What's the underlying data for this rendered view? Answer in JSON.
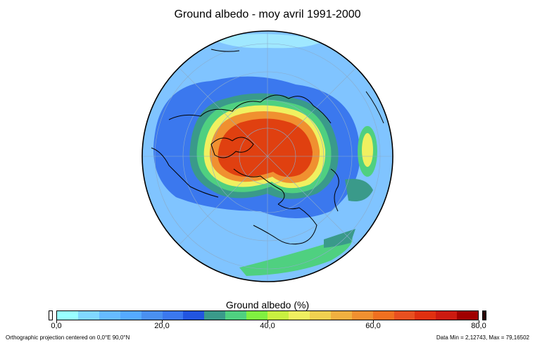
{
  "title": "Ground albedo - moy avril 1991-2000",
  "legend": {
    "title": "Ground albedo (%)",
    "ticks": [
      "0,0",
      "20,0",
      "40,0",
      "60,0",
      "80,0"
    ],
    "tick_values": [
      0,
      20,
      40,
      60,
      80
    ],
    "range": [
      0,
      80
    ],
    "colors": [
      "#99ffff",
      "#80d8ff",
      "#66bbff",
      "#55aaff",
      "#4a90f0",
      "#3b78ee",
      "#2255e0",
      "#3a9a8a",
      "#4fd080",
      "#80f040",
      "#c8f040",
      "#f0f060",
      "#f0d050",
      "#f0b040",
      "#f09030",
      "#f07020",
      "#e85020",
      "#e03010",
      "#cc1a10",
      "#a00000"
    ],
    "under_color": "#ffffff",
    "over_color": "#2a0000"
  },
  "footer": {
    "projection": "Orthographic projection centered on 0,0°E 90,0°N",
    "data_range": "Data Min = 2,12743, Max = 79,16502"
  },
  "map": {
    "projection": "orthographic",
    "center": "0,0°E 90,0°N",
    "graticule": true,
    "ocean_color": "#80c4ff",
    "ice_core_color": "#e04010",
    "coastline_color": "#000000"
  }
}
